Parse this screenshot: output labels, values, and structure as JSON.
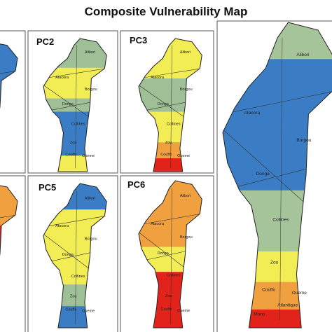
{
  "title": "Composite Vulnerability Map",
  "panels": [
    {
      "label": "PC2",
      "regions": [
        "Alibori",
        "Atacora",
        "Borgou",
        "Donga",
        "Collines",
        "Zou",
        "Couffo",
        "Oueme"
      ]
    },
    {
      "label": "PC3",
      "regions": [
        "Alibori",
        "Atacora",
        "Borgou",
        "Donga",
        "Collines",
        "Zou",
        "Couffo",
        "Oueme"
      ]
    },
    {
      "label": "PC5",
      "regions": [
        "Alibori",
        "Atacora",
        "Borgou",
        "Donga",
        "Collines",
        "Zou",
        "Couffo",
        "Oueme"
      ]
    },
    {
      "label": "PC6",
      "regions": [
        "Alibori",
        "Atacora",
        "Borgou",
        "Donga",
        "Collines",
        "Zou",
        "Couffo",
        "Oueme"
      ]
    }
  ],
  "main_map": {
    "regions": [
      "Alibori",
      "Atacora",
      "Borgou",
      "Donga",
      "Collines",
      "Zou",
      "Couffo",
      "Mono",
      "Atlantique",
      "Oueme"
    ]
  }
}
